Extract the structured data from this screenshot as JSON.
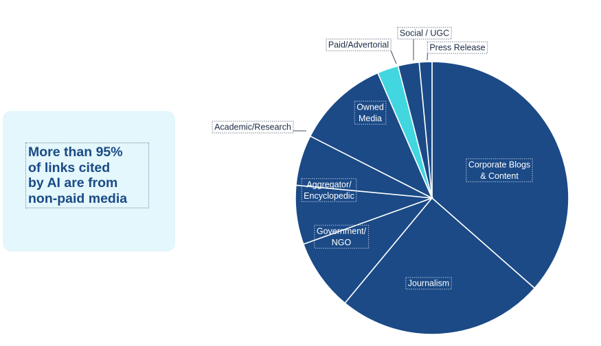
{
  "callout": {
    "text": "More than 95%\nof links cited\nby AI are from\nnon-paid media"
  },
  "colors": {
    "primary": "#1b4a86",
    "highlight": "#41d6e0",
    "callout_background": "#e3f7fc"
  },
  "chart_data": {
    "type": "pie",
    "start_angle_deg": 0,
    "direction": "clockwise",
    "slices": [
      {
        "label": "Corporate Blogs\n& Content",
        "value": 36.5,
        "color": "#1b4a86",
        "label_position": "inside"
      },
      {
        "label": "Journalism",
        "value": 24.5,
        "color": "#1b4a86",
        "label_position": "inside"
      },
      {
        "label": "Government/\nNGO",
        "value": 8.5,
        "color": "#1b4a86",
        "label_position": "inside"
      },
      {
        "label": "Aggregator/\nEncyclopedic",
        "value": 7.0,
        "color": "#1b4a86",
        "label_position": "inside"
      },
      {
        "label": "Academic/Research",
        "value": 6.0,
        "color": "#1b4a86",
        "label_position": "outside"
      },
      {
        "label": "Owned\nMedia",
        "value": 11.0,
        "color": "#1b4a86",
        "label_position": "inside"
      },
      {
        "label": "Paid/Advertorial",
        "value": 2.5,
        "color": "#41d6e0",
        "label_position": "outside"
      },
      {
        "label": "Social / UGC",
        "value": 2.5,
        "color": "#1b4a86",
        "label_position": "outside"
      },
      {
        "label": "Press Release",
        "value": 1.5,
        "color": "#1b4a86",
        "label_position": "outside"
      }
    ]
  }
}
